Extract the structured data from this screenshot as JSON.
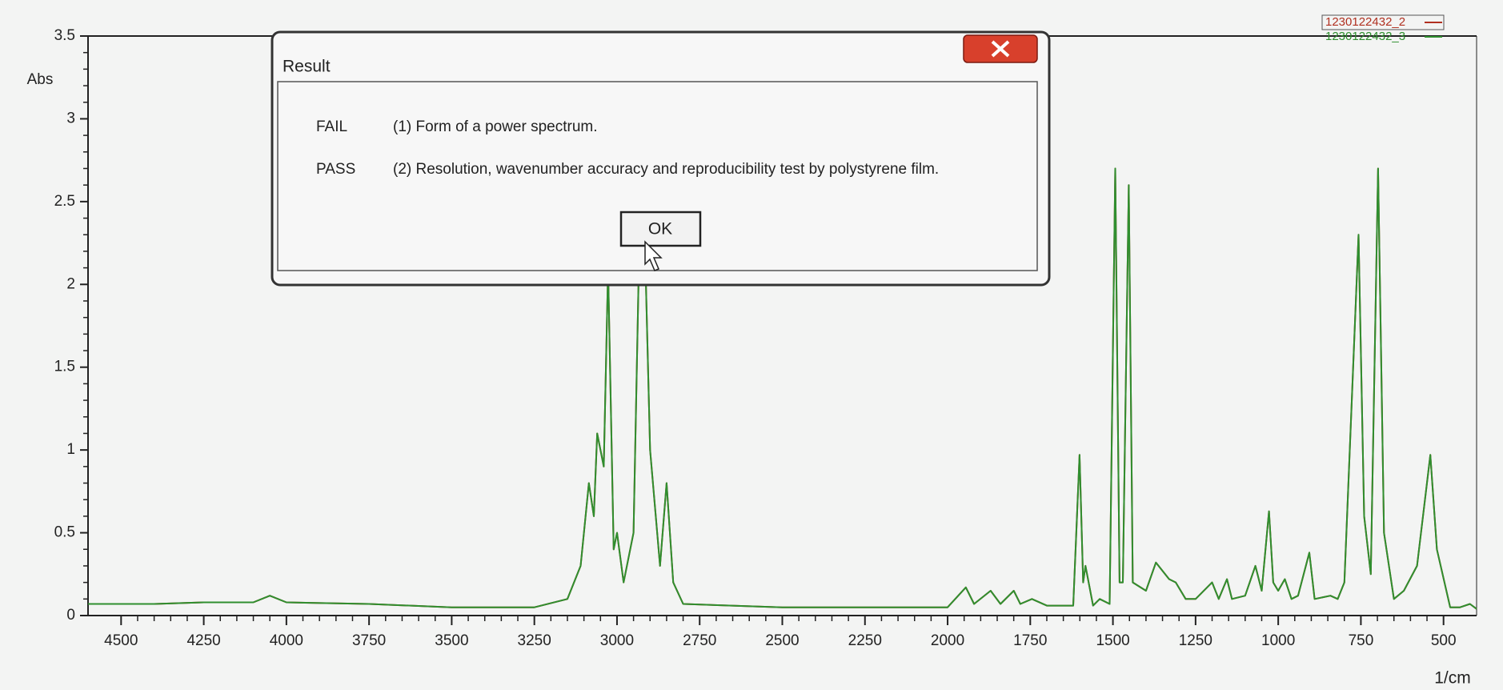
{
  "chart_data": {
    "type": "line",
    "xlabel": "1/cm",
    "ylabel": "Abs",
    "xlim": [
      4600,
      400
    ],
    "ylim": [
      0,
      3.5
    ],
    "xticks": [
      4500,
      4250,
      4000,
      3750,
      3500,
      3250,
      3000,
      2750,
      2500,
      2250,
      2000,
      1750,
      1500,
      1250,
      1000,
      750,
      500
    ],
    "yticks": [
      0,
      0.5,
      1,
      1.5,
      2,
      2.5,
      3,
      3.5
    ],
    "x": [
      4600,
      4400,
      4250,
      4100,
      4050,
      4000,
      3750,
      3500,
      3250,
      3150,
      3110,
      3085,
      3070,
      3060,
      3040,
      3027,
      3010,
      3000,
      2980,
      2950,
      2925,
      2900,
      2870,
      2850,
      2830,
      2800,
      2500,
      2000,
      1945,
      1920,
      1870,
      1840,
      1800,
      1780,
      1745,
      1700,
      1620,
      1601,
      1590,
      1583,
      1560,
      1540,
      1510,
      1493,
      1480,
      1470,
      1452,
      1440,
      1400,
      1370,
      1330,
      1310,
      1280,
      1250,
      1200,
      1180,
      1155,
      1140,
      1100,
      1069,
      1050,
      1028,
      1015,
      1000,
      980,
      960,
      940,
      906,
      890,
      842,
      820,
      800,
      757,
      740,
      720,
      698,
      680,
      650,
      620,
      580,
      540,
      520,
      480,
      450,
      420,
      400
    ],
    "series": [
      {
        "name": "1230122432_2",
        "color": "#b03020",
        "values": [
          0.07,
          0.07,
          0.08,
          0.08,
          0.12,
          0.08,
          0.07,
          0.05,
          0.05,
          0.1,
          0.3,
          0.8,
          0.6,
          1.1,
          0.9,
          2.1,
          0.4,
          0.5,
          0.2,
          0.5,
          3.0,
          1.0,
          0.3,
          0.8,
          0.2,
          0.07,
          0.05,
          0.05,
          0.17,
          0.07,
          0.15,
          0.07,
          0.15,
          0.07,
          0.1,
          0.06,
          0.06,
          0.97,
          0.2,
          0.3,
          0.06,
          0.1,
          0.07,
          2.7,
          0.2,
          0.2,
          2.6,
          0.2,
          0.15,
          0.32,
          0.22,
          0.2,
          0.1,
          0.1,
          0.2,
          0.1,
          0.22,
          0.1,
          0.12,
          0.3,
          0.15,
          0.63,
          0.2,
          0.15,
          0.22,
          0.1,
          0.12,
          0.38,
          0.1,
          0.12,
          0.1,
          0.2,
          2.3,
          0.6,
          0.25,
          2.7,
          0.5,
          0.1,
          0.15,
          0.3,
          0.97,
          0.4,
          0.05,
          0.05,
          0.07,
          0.04
        ]
      },
      {
        "name": "1230122432_3",
        "color": "#2f8f2f",
        "values": [
          0.07,
          0.07,
          0.08,
          0.08,
          0.12,
          0.08,
          0.07,
          0.05,
          0.05,
          0.1,
          0.3,
          0.8,
          0.6,
          1.1,
          0.9,
          2.1,
          0.4,
          0.5,
          0.2,
          0.5,
          3.0,
          1.0,
          0.3,
          0.8,
          0.2,
          0.07,
          0.05,
          0.05,
          0.17,
          0.07,
          0.15,
          0.07,
          0.15,
          0.07,
          0.1,
          0.06,
          0.06,
          0.97,
          0.2,
          0.3,
          0.06,
          0.1,
          0.07,
          2.7,
          0.2,
          0.2,
          2.6,
          0.2,
          0.15,
          0.32,
          0.22,
          0.2,
          0.1,
          0.1,
          0.2,
          0.1,
          0.22,
          0.1,
          0.12,
          0.3,
          0.15,
          0.63,
          0.2,
          0.15,
          0.22,
          0.1,
          0.12,
          0.38,
          0.1,
          0.12,
          0.1,
          0.2,
          2.3,
          0.6,
          0.25,
          2.7,
          0.5,
          0.1,
          0.15,
          0.3,
          0.97,
          0.4,
          0.05,
          0.05,
          0.07,
          0.04
        ]
      }
    ]
  },
  "dialog": {
    "title": "Result",
    "rows": [
      [
        "FAIL",
        "(1) Form of a power spectrum."
      ],
      [
        "PASS",
        "(2) Resolution, wavenumber accuracy and reproducibility test by polystyrene film."
      ]
    ],
    "button": "OK"
  }
}
